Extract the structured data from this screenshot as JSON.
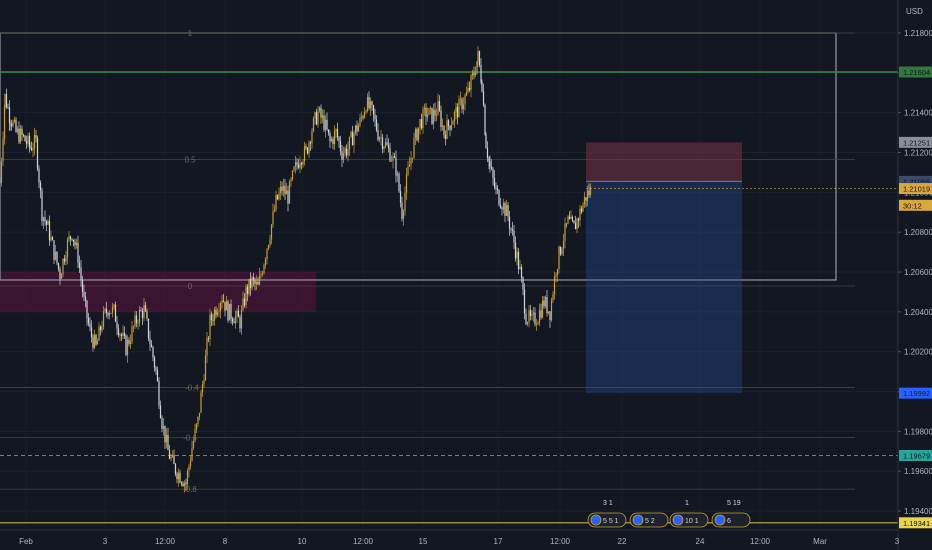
{
  "currency": "USD",
  "price_badges": [
    {
      "label": "1.21604",
      "price": 1.21604,
      "bg": "#2f7a3a",
      "fg": "#ffffff"
    },
    {
      "label": "1.21251",
      "price": 1.21251,
      "bg": "#8a8e99",
      "fg": "#ffffff"
    },
    {
      "label": "1.21055",
      "price": 1.21055,
      "bg": "#3c4a6b",
      "fg": "#ffffff"
    },
    {
      "label": "1.21019",
      "price": 1.21019,
      "bg": "#d8a83a",
      "fg": "#131722"
    },
    {
      "label": "30:12",
      "price": 1.20935,
      "bg": "#d8a83a",
      "fg": "#131722"
    },
    {
      "label": "1.19992",
      "price": 1.19992,
      "bg": "#2962ff",
      "fg": "#ffffff"
    },
    {
      "label": "1.19679",
      "price": 1.19679,
      "bg": "#26a69a",
      "fg": "#ffffff"
    },
    {
      "label": "1.19341",
      "price": 1.19341,
      "bg": "#e8d44d",
      "fg": "#131722"
    }
  ],
  "fib_labels": [
    "1",
    "0.5",
    "0",
    "-0.4",
    "-0.6",
    "-0.8"
  ],
  "chart_data": {
    "type": "candlestick",
    "symbol_quote": "USD",
    "ylim": [
      1.1927,
      1.2201
    ],
    "y_ticks": [
      "1.21800",
      "1.21600",
      "1.21400",
      "1.21200",
      "1.21000",
      "1.20800",
      "1.20600",
      "1.20400",
      "1.20200",
      "1.20000",
      "1.19800",
      "1.19600",
      "1.19400"
    ],
    "x_ticks": [
      "Feb",
      "3",
      "12:00",
      "8",
      "10",
      "12:00",
      "15",
      "17",
      "12:00",
      "22",
      "24",
      "12:00",
      "Mar",
      "3"
    ],
    "key_path": [
      [
        0,
        1.2105
      ],
      [
        5,
        1.2148
      ],
      [
        10,
        1.2138
      ],
      [
        16,
        1.213
      ],
      [
        22,
        1.2128
      ],
      [
        30,
        1.2123
      ],
      [
        36,
        1.2125
      ],
      [
        42,
        1.209
      ],
      [
        48,
        1.2082
      ],
      [
        54,
        1.207
      ],
      [
        60,
        1.2059
      ],
      [
        66,
        1.2072
      ],
      [
        72,
        1.208
      ],
      [
        78,
        1.2068
      ],
      [
        84,
        1.2045
      ],
      [
        90,
        1.203
      ],
      [
        96,
        1.2022
      ],
      [
        102,
        1.2035
      ],
      [
        108,
        1.2042
      ],
      [
        114,
        1.204
      ],
      [
        120,
        1.203
      ],
      [
        126,
        1.2022
      ],
      [
        132,
        1.203
      ],
      [
        138,
        1.2038
      ],
      [
        144,
        1.2041
      ],
      [
        150,
        1.2025
      ],
      [
        156,
        1.201
      ],
      [
        162,
        1.1985
      ],
      [
        168,
        1.197
      ],
      [
        174,
        1.1962
      ],
      [
        180,
        1.1958
      ],
      [
        186,
        1.1954
      ],
      [
        192,
        1.1972
      ],
      [
        198,
        1.1985
      ],
      [
        204,
        1.201
      ],
      [
        210,
        1.2035
      ],
      [
        216,
        1.2042
      ],
      [
        222,
        1.2048
      ],
      [
        228,
        1.204
      ],
      [
        234,
        1.2038
      ],
      [
        240,
        1.2035
      ],
      [
        246,
        1.205
      ],
      [
        252,
        1.2055
      ],
      [
        258,
        1.2052
      ],
      [
        264,
        1.2066
      ],
      [
        270,
        1.208
      ],
      [
        276,
        1.2095
      ],
      [
        282,
        1.2102
      ],
      [
        288,
        1.2098
      ],
      [
        294,
        1.211
      ],
      [
        300,
        1.2118
      ],
      [
        306,
        1.212
      ],
      [
        312,
        1.2132
      ],
      [
        318,
        1.214
      ],
      [
        324,
        1.2135
      ],
      [
        330,
        1.2125
      ],
      [
        336,
        1.213
      ],
      [
        342,
        1.212
      ],
      [
        348,
        1.2122
      ],
      [
        354,
        1.213
      ],
      [
        360,
        1.2135
      ],
      [
        366,
        1.2145
      ],
      [
        372,
        1.214
      ],
      [
        378,
        1.213
      ],
      [
        384,
        1.2125
      ],
      [
        390,
        1.212
      ],
      [
        396,
        1.2112
      ],
      [
        402,
        1.209
      ],
      [
        408,
        1.211
      ],
      [
        414,
        1.2125
      ],
      [
        420,
        1.2135
      ],
      [
        426,
        1.214
      ],
      [
        432,
        1.2138
      ],
      [
        438,
        1.2142
      ],
      [
        444,
        1.213
      ],
      [
        450,
        1.2135
      ],
      [
        456,
        1.214
      ],
      [
        462,
        1.2145
      ],
      [
        468,
        1.215
      ],
      [
        474,
        1.216
      ],
      [
        478,
        1.2168
      ],
      [
        482,
        1.2155
      ],
      [
        486,
        1.2125
      ],
      [
        490,
        1.2112
      ],
      [
        496,
        1.21
      ],
      [
        502,
        1.2095
      ],
      [
        508,
        1.2088
      ],
      [
        514,
        1.2075
      ],
      [
        520,
        1.206
      ],
      [
        526,
        1.2038
      ],
      [
        532,
        1.2035
      ],
      [
        538,
        1.2038
      ],
      [
        544,
        1.2045
      ],
      [
        550,
        1.204
      ],
      [
        556,
        1.2062
      ],
      [
        562,
        1.2075
      ],
      [
        568,
        1.2085
      ],
      [
        574,
        1.2082
      ],
      [
        580,
        1.209
      ],
      [
        586,
        1.2098
      ],
      [
        592,
        1.2102
      ]
    ],
    "last_price": 1.21019,
    "horizontal_levels": [
      {
        "price": 1.21604,
        "color": "#3d8a47",
        "style": "solid"
      },
      {
        "price": 1.19679,
        "color": "#26a69a",
        "style": "dashed"
      },
      {
        "price": 1.19341,
        "color": "#9a8a3a",
        "style": "solid"
      }
    ],
    "fib_levels": [
      {
        "label": "1",
        "price": 1.218
      },
      {
        "label": "0.5",
        "price": 1.21165
      },
      {
        "label": "0",
        "price": 1.2053
      },
      {
        "label": "-0.4",
        "price": 1.2002
      },
      {
        "label": "-0.6",
        "price": 1.1977
      },
      {
        "label": "-0.8",
        "price": 1.1951
      }
    ],
    "rect_range": {
      "top": 1.218,
      "bottom": 1.2056,
      "x1": 0,
      "x2": 836
    },
    "zone": {
      "top": 1.206,
      "bottom": 1.204,
      "x1": 0,
      "x2": 316
    },
    "short_position": {
      "entry": 1.21055,
      "stop": 1.21251,
      "target": 1.19992,
      "x1": 586,
      "x2": 742
    },
    "grid": true
  },
  "events": [
    {
      "label": "5 5 1",
      "sub": "3 1"
    },
    {
      "label": "5 2",
      "sub": ""
    },
    {
      "label": "10 1",
      "sub": "1"
    },
    {
      "label": "6",
      "sub": "5 19"
    }
  ]
}
